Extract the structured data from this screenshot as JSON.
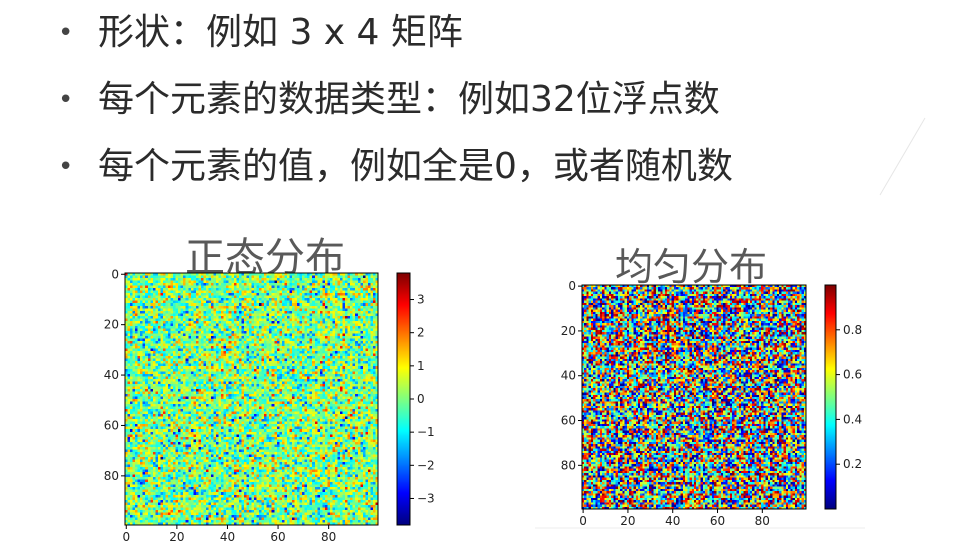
{
  "slide": {
    "bullets": [
      "形状：例如 3 x 4 矩阵",
      "每个元素的数据类型：例如32位浮点数",
      "每个元素的值，例如全是0，或者随机数"
    ],
    "bullet_glyph": "•"
  },
  "chart_data": [
    {
      "type": "heatmap",
      "title": "正态分布",
      "grid_size": [
        100,
        100
      ],
      "distribution": "normal",
      "value_range": [
        -3.8,
        3.8
      ],
      "colormap": "jet",
      "x_ticks": [
        0,
        20,
        40,
        60,
        80
      ],
      "y_ticks": [
        0,
        20,
        40,
        60,
        80
      ],
      "colorbar_ticks": [
        3,
        2,
        1,
        0,
        -1,
        -2,
        -3
      ],
      "colorbar_labels": [
        "3",
        "2",
        "1",
        "0",
        "−1",
        "−2",
        "−3"
      ]
    },
    {
      "type": "heatmap",
      "title": "均匀分布",
      "grid_size": [
        100,
        100
      ],
      "distribution": "uniform",
      "value_range": [
        0,
        1
      ],
      "colormap": "jet",
      "x_ticks": [
        0,
        20,
        40,
        60,
        80
      ],
      "y_ticks": [
        0,
        20,
        40,
        60,
        80
      ],
      "colorbar_ticks": [
        0.8,
        0.6,
        0.4,
        0.2
      ],
      "colorbar_labels": [
        "0.8",
        "0.6",
        "0.4",
        "0.2"
      ]
    }
  ]
}
